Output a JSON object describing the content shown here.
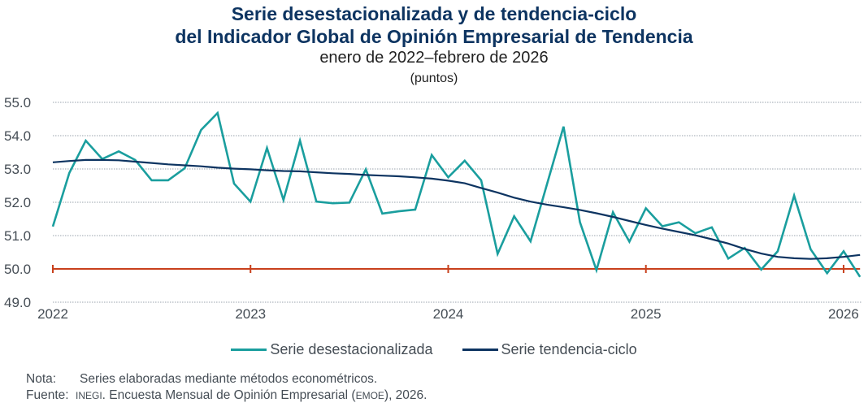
{
  "chart_data": {
    "type": "line",
    "title": "Serie desestacionalizada y de tendencia-ciclo",
    "title_line2": "del Indicador Global de Opinión Empresarial de Tendencia",
    "subtitle": "enero de 2022–febrero de 2026",
    "units": "(puntos)",
    "xlabel": "",
    "ylabel": "",
    "ylim": [
      49.0,
      55.0
    ],
    "yticks": [
      "49.0",
      "50.0",
      "51.0",
      "52.0",
      "53.0",
      "54.0",
      "55.0"
    ],
    "xticks": [
      "2022",
      "2023",
      "2024",
      "2025",
      "2026"
    ],
    "grid": true,
    "threshold": {
      "value": 50.0,
      "color": "#c8401c"
    },
    "x_start": "2022-01",
    "x_end": "2026-02",
    "legend_position": "bottom",
    "series": [
      {
        "name": "Serie desestacionalizada",
        "color": "#1a9e9e",
        "values": [
          51.27,
          52.88,
          53.85,
          53.3,
          53.53,
          53.27,
          52.66,
          52.66,
          53.02,
          54.17,
          54.68,
          52.56,
          52.02,
          53.63,
          52.07,
          53.85,
          52.02,
          51.97,
          51.99,
          52.99,
          51.66,
          51.73,
          51.78,
          53.42,
          52.75,
          53.25,
          52.66,
          50.45,
          51.58,
          50.83,
          52.55,
          54.27,
          51.4,
          49.96,
          51.7,
          50.82,
          51.82,
          51.28,
          51.4,
          51.07,
          51.25,
          50.31,
          50.63,
          49.98,
          50.53,
          52.2,
          50.59,
          49.87,
          50.53,
          49.76
        ]
      },
      {
        "name": "Serie tendencia-ciclo",
        "color": "#0d3461",
        "values": [
          53.2,
          53.24,
          53.27,
          53.27,
          53.26,
          53.22,
          53.18,
          53.14,
          53.11,
          53.08,
          53.04,
          53.01,
          52.99,
          52.96,
          52.94,
          52.93,
          52.9,
          52.87,
          52.85,
          52.82,
          52.8,
          52.78,
          52.75,
          52.71,
          52.65,
          52.57,
          52.43,
          52.29,
          52.14,
          52.02,
          51.93,
          51.85,
          51.77,
          51.67,
          51.56,
          51.44,
          51.32,
          51.21,
          51.11,
          51.01,
          50.89,
          50.76,
          50.6,
          50.46,
          50.36,
          50.32,
          50.3,
          50.32,
          50.36,
          50.42
        ]
      }
    ]
  },
  "legend": [
    {
      "label": "Serie desestacionalizada",
      "color": "#1a9e9e"
    },
    {
      "label": "Serie tendencia-ciclo",
      "color": "#0d3461"
    }
  ],
  "footer": {
    "note_label": "Nota:",
    "note_text": "Series elaboradas mediante métodos econométricos.",
    "source_label": "Fuente:",
    "source_org": "INEGI",
    "source_text_1": ". Encuesta Mensual de Opinión Empresarial (",
    "source_abbr": "EMOE",
    "source_text_2": "), 2026."
  }
}
